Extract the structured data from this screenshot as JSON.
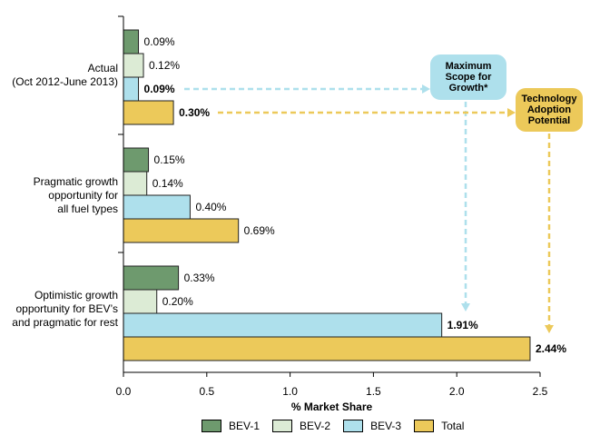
{
  "chart_data": {
    "type": "bar",
    "orientation": "horizontal",
    "categories": [
      [
        "Actual",
        "(Oct 2012-June 2013)"
      ],
      [
        "Pragmatic growth",
        "opportunity for",
        "all fuel types"
      ],
      [
        "Optimistic growth",
        "opportunity for BEV’s",
        "and pragmatic for rest"
      ]
    ],
    "series": [
      {
        "name": "BEV-1",
        "color": "#6e9a6e",
        "values": [
          0.09,
          0.15,
          0.33
        ],
        "labels": [
          "0.09%",
          "0.15%",
          "0.33%"
        ],
        "bold": [
          false,
          false,
          false
        ]
      },
      {
        "name": "BEV-2",
        "color": "#dcebd5",
        "values": [
          0.12,
          0.14,
          0.2
        ],
        "labels": [
          "0.12%",
          "0.14%",
          "0.20%"
        ],
        "bold": [
          false,
          false,
          false
        ]
      },
      {
        "name": "BEV-3",
        "color": "#aee0ec",
        "values": [
          0.09,
          0.4,
          1.91
        ],
        "labels": [
          "0.09%",
          "0.40%",
          "1.91%"
        ],
        "bold": [
          true,
          false,
          true
        ]
      },
      {
        "name": "Total",
        "color": "#ecc95a",
        "values": [
          0.3,
          0.69,
          2.44
        ],
        "labels": [
          "0.30%",
          "0.69%",
          "2.44%"
        ],
        "bold": [
          true,
          false,
          true
        ]
      }
    ],
    "xlabel": "% Market Share",
    "xlim": [
      0,
      2.5
    ],
    "xticks": [
      0.0,
      0.5,
      1.0,
      1.5,
      2.0,
      2.5
    ],
    "xtick_labels": [
      "0.0",
      "0.5",
      "1.0",
      "1.5",
      "2.0",
      "2.5"
    ],
    "grid": false,
    "legend_position": "bottom",
    "annotations": [
      {
        "name": "max-scope",
        "lines": [
          "Maximum",
          "Scope for",
          "Growth*"
        ],
        "color": "#aee0ec",
        "series": "BEV-3"
      },
      {
        "name": "tech-adoption",
        "lines": [
          "Technology",
          "Adoption",
          "Potential"
        ],
        "color": "#ecc95a",
        "series": "Total"
      }
    ]
  }
}
